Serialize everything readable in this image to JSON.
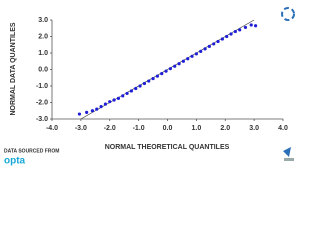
{
  "chart_data": {
    "type": "scatter",
    "x_label": "NORMAL THEORETICAL QUANTILES",
    "y_label": "NORMAL DATA QUANTILES",
    "source_prefix": "DATA SOURCED FROM",
    "source_name": "opta",
    "color": "#1f1fd6",
    "line_color": "#333333",
    "xlim": [
      -4,
      4
    ],
    "ylim": [
      -3,
      3
    ],
    "xticks": [
      {
        "value": -4,
        "label": "-4.0"
      },
      {
        "value": -3,
        "label": "-3.0"
      },
      {
        "value": -2,
        "label": "-2.0"
      },
      {
        "value": -1,
        "label": "-1.0"
      },
      {
        "value": 0,
        "label": "0.0"
      },
      {
        "value": 1,
        "label": "1.0"
      },
      {
        "value": 2,
        "label": "2.0"
      },
      {
        "value": 3,
        "label": "3.0"
      },
      {
        "value": 4,
        "label": "4.0"
      }
    ],
    "yticks": [
      {
        "value": -3,
        "label": "-3.0"
      },
      {
        "value": -2,
        "label": "-2.0"
      },
      {
        "value": -1,
        "label": "-1.0"
      },
      {
        "value": 0,
        "label": "0.0"
      },
      {
        "value": 1,
        "label": "1.0"
      },
      {
        "value": 2,
        "label": "2.0"
      },
      {
        "value": 3,
        "label": "3.0"
      }
    ],
    "reference_line": {
      "x": [
        -3,
        3
      ],
      "y": [
        -3,
        3
      ]
    },
    "x": [
      -3.05,
      -2.8,
      -2.6,
      -2.45,
      -2.3,
      -2.15,
      -2.0,
      -1.85,
      -1.7,
      -1.55,
      -1.4,
      -1.25,
      -1.1,
      -0.95,
      -0.8,
      -0.65,
      -0.5,
      -0.35,
      -0.2,
      -0.05,
      0.1,
      0.25,
      0.4,
      0.55,
      0.7,
      0.85,
      1.0,
      1.15,
      1.3,
      1.45,
      1.6,
      1.75,
      1.9,
      2.05,
      2.2,
      2.35,
      2.5,
      2.7,
      2.9,
      3.05
    ],
    "values": [
      -2.7,
      -2.6,
      -2.5,
      -2.4,
      -2.25,
      -2.1,
      -1.95,
      -1.85,
      -1.75,
      -1.6,
      -1.45,
      -1.3,
      -1.15,
      -1.0,
      -0.85,
      -0.7,
      -0.55,
      -0.4,
      -0.25,
      -0.1,
      0.05,
      0.2,
      0.35,
      0.5,
      0.65,
      0.8,
      0.95,
      1.1,
      1.25,
      1.4,
      1.55,
      1.7,
      1.85,
      2.0,
      2.15,
      2.3,
      2.4,
      2.55,
      2.7,
      2.65
    ]
  }
}
